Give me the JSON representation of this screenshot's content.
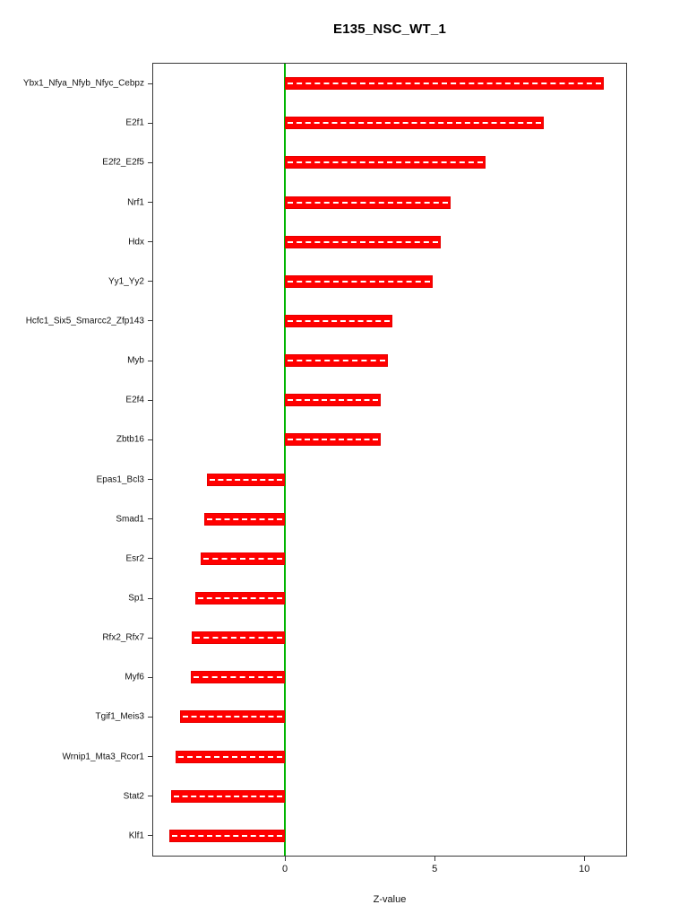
{
  "chart_data": {
    "type": "bar",
    "orientation": "horizontal",
    "title": "E135_NSC_WT_1",
    "xlabel": "Z-value",
    "ylabel": "",
    "categories": [
      "Ybx1_Nfya_Nfyb_Nfyc_Cebpz",
      "E2f1",
      "E2f2_E2f5",
      "Nrf1",
      "Hdx",
      "Yy1_Yy2",
      "Hcfc1_Six5_Smarcc2_Zfp143",
      "Myb",
      "E2f4",
      "Zbtb16",
      "Epas1_Bcl3",
      "Smad1",
      "Esr2",
      "Sp1",
      "Rfx2_Rfx7",
      "Myf6",
      "Tgif1_Meis3",
      "Wrnip1_Mta3_Rcor1",
      "Stat2",
      "Klf1"
    ],
    "values": [
      10.65,
      8.65,
      6.7,
      5.55,
      5.2,
      4.95,
      3.6,
      3.45,
      3.2,
      3.2,
      -2.6,
      -2.7,
      -2.8,
      -3.0,
      -3.1,
      -3.15,
      -3.5,
      -3.65,
      -3.8,
      -3.85
    ],
    "xlim": [
      -4.4,
      11.4
    ],
    "xticks": [
      0,
      5,
      10
    ],
    "grid": false,
    "legend": "none",
    "bar_color": "#ff0000",
    "bar_dash_color": "#ffffff",
    "zero_line_color": "#00b400"
  }
}
